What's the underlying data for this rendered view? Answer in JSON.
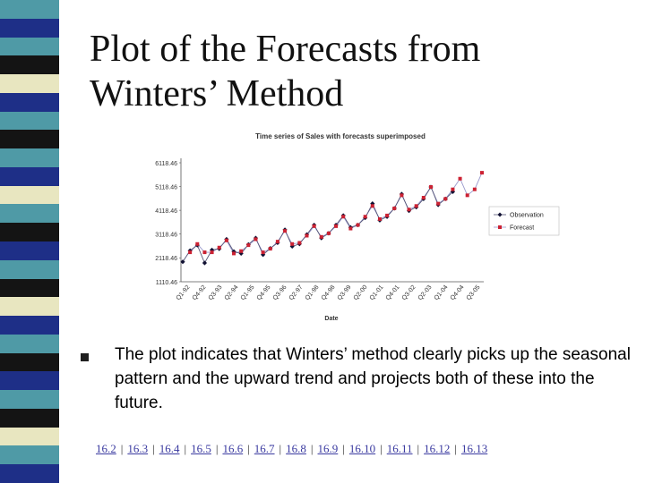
{
  "slide": {
    "title_line1": "Plot of the Forecasts from",
    "title_line2": "Winters’ Method",
    "bullet": "The plot indicates that Winters’ method clearly picks up the seasonal pattern and the upward trend and projects both of these into the future."
  },
  "nav": {
    "links": [
      "16.2",
      "16.3",
      "16.4",
      "16.5",
      "16.6",
      "16.7",
      "16.8",
      "16.9",
      "16.10",
      "16.11",
      "16.12",
      "16.13"
    ],
    "separator": "|"
  },
  "colors": {
    "stripe": [
      "#4f9aa6",
      "#1e2f87",
      "#4f9aa6",
      "#141414",
      "#e8e6c0",
      "#1e2f87",
      "#4f9aa6",
      "#141414",
      "#4f9aa6",
      "#1e2f87",
      "#e8e6c0",
      "#4f9aa6",
      "#141414",
      "#1e2f87",
      "#4f9aa6",
      "#141414",
      "#e8e6c0",
      "#1e2f87",
      "#4f9aa6",
      "#141414",
      "#1e2f87",
      "#4f9aa6",
      "#141414",
      "#e8e6c0",
      "#4f9aa6",
      "#1e2f87"
    ],
    "observation": "#111133",
    "forecast": "#cc2233",
    "line": "#9999cc"
  },
  "chart_data": {
    "type": "line",
    "title": "Time series of Sales with forecasts superimposed",
    "xlabel": "Date",
    "ylabel": "",
    "yticks": [
      "1110.46",
      "2118.46",
      "3118.46",
      "4118.46",
      "5118.46",
      "6118.46"
    ],
    "ylim": [
      1110.46,
      6118.46
    ],
    "xticks": [
      "Q1-92",
      "Q4-92",
      "Q3-93",
      "Q2-94",
      "Q1-95",
      "Q4-95",
      "Q3-96",
      "Q2-97",
      "Q1-98",
      "Q4-98",
      "Q3-99",
      "Q2-00",
      "Q1-01",
      "Q4-01",
      "Q3-02",
      "Q2-03",
      "Q1-04",
      "Q4-04",
      "Q3-05"
    ],
    "legend_position": "right",
    "series": [
      {
        "name": "Observation",
        "values": [
          1950,
          2420,
          2650,
          1900,
          2450,
          2500,
          2900,
          2380,
          2300,
          2680,
          2950,
          2250,
          2520,
          2750,
          3300,
          2600,
          2700,
          3100,
          3500,
          2950,
          3150,
          3500,
          3900,
          3400,
          3500,
          3800,
          4400,
          3700,
          3850,
          4200,
          4800,
          4100,
          4250,
          4600,
          5100,
          4350,
          4600,
          4900,
          null,
          null,
          null,
          null
        ]
      },
      {
        "name": "Forecast",
        "values": [
          null,
          2350,
          2700,
          2350,
          2350,
          2550,
          2850,
          2300,
          2400,
          2650,
          2900,
          2350,
          2500,
          2800,
          3250,
          2700,
          2750,
          3050,
          3450,
          3000,
          3150,
          3450,
          3850,
          3350,
          3500,
          3850,
          4300,
          3750,
          3900,
          4200,
          4750,
          4150,
          4300,
          4650,
          5100,
          4400,
          4600,
          5000,
          5450,
          4750,
          5000,
          5700
        ]
      }
    ]
  }
}
